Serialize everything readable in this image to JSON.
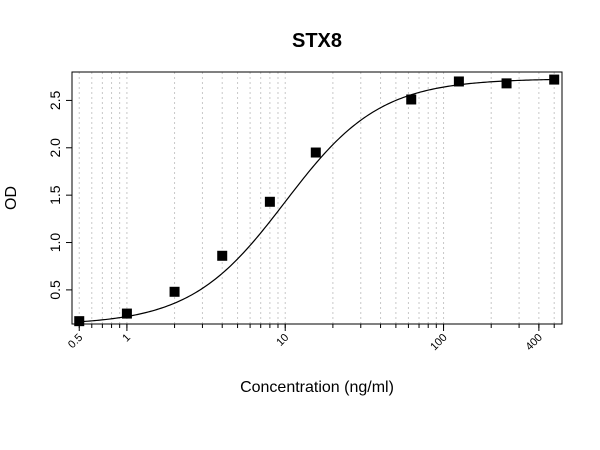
{
  "chart_data": {
    "type": "scatter",
    "title": "STX8",
    "xlabel": "Concentration (ng/ml)",
    "ylabel": "OD",
    "x_scale": "log",
    "xlim": [
      0.45,
      560
    ],
    "ylim": [
      0.14,
      2.8
    ],
    "x_tick_labels": [
      {
        "value": 0.5,
        "label": "0.5"
      },
      {
        "value": 1,
        "label": "1"
      },
      {
        "value": 10,
        "label": "10"
      },
      {
        "value": 100,
        "label": "100"
      },
      {
        "value": 400,
        "label": "400"
      }
    ],
    "y_ticks": [
      {
        "value": 0.5,
        "label": "0.5"
      },
      {
        "value": 1.0,
        "label": "1.0"
      },
      {
        "value": 1.5,
        "label": "1.5"
      },
      {
        "value": 2.0,
        "label": "2.0"
      },
      {
        "value": 2.5,
        "label": "2.5"
      }
    ],
    "grid": "vertical dotted, log minor",
    "series": [
      {
        "marker": "square",
        "color": "#000000",
        "points": [
          {
            "x": 0.5,
            "y": 0.17
          },
          {
            "x": 1,
            "y": 0.25
          },
          {
            "x": 2,
            "y": 0.48
          },
          {
            "x": 4,
            "y": 0.86
          },
          {
            "x": 8,
            "y": 1.43
          },
          {
            "x": 15.6,
            "y": 1.95
          },
          {
            "x": 62.5,
            "y": 2.51
          },
          {
            "x": 125,
            "y": 2.7
          },
          {
            "x": 250,
            "y": 2.68
          },
          {
            "x": 500,
            "y": 2.72
          }
        ]
      }
    ],
    "fit": {
      "type": "4PL",
      "bottom": 0.13,
      "top": 2.73,
      "ec50": 10.0,
      "hill": 1.45,
      "color": "#000000"
    }
  }
}
